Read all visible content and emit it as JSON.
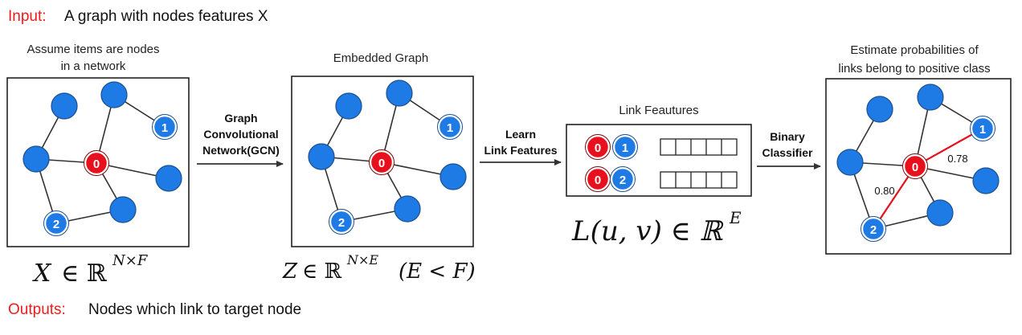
{
  "header": {
    "input_label": "Input:",
    "input_text": "A graph with nodes features X"
  },
  "footer": {
    "output_label": "Outputs:",
    "output_text": "Nodes which link to target node"
  },
  "panels": {
    "p1": {
      "caption_line1": "Assume items are nodes",
      "caption_line2": "in a network",
      "math_var": "X",
      "math_rest": "∈ ℝ",
      "math_sup": "N×F"
    },
    "p2": {
      "caption": "Embedded Graph",
      "math_var": "Z",
      "math_rest": "∈ ℝ",
      "math_sup": "N×E",
      "math_cond": "(E < F)"
    },
    "p3": {
      "caption": "Link Feautures",
      "math_expr": "L(u, v) ∈ ℝ",
      "math_sup": "E"
    },
    "p4": {
      "caption_line1": "Estimate probabilities of",
      "caption_line2": "links belong to positive class",
      "prob_1": "0.78",
      "prob_2": "0.80"
    }
  },
  "steps": {
    "gcn": {
      "line1": "Graph",
      "line2": "Convolutional",
      "line3": "Network(GCN)"
    },
    "learn": {
      "line1": "Learn",
      "line2": "Link Features"
    },
    "classify": {
      "line1": "Binary",
      "line2": "Classifier"
    }
  },
  "node_labels": {
    "target": "0",
    "n1": "1",
    "n2": "2"
  },
  "colors": {
    "node_blue": "#1e7be6",
    "node_red": "#e8101c",
    "edge": "#333333",
    "link_red": "#e8101c",
    "header_red": "#ee1c1c"
  }
}
